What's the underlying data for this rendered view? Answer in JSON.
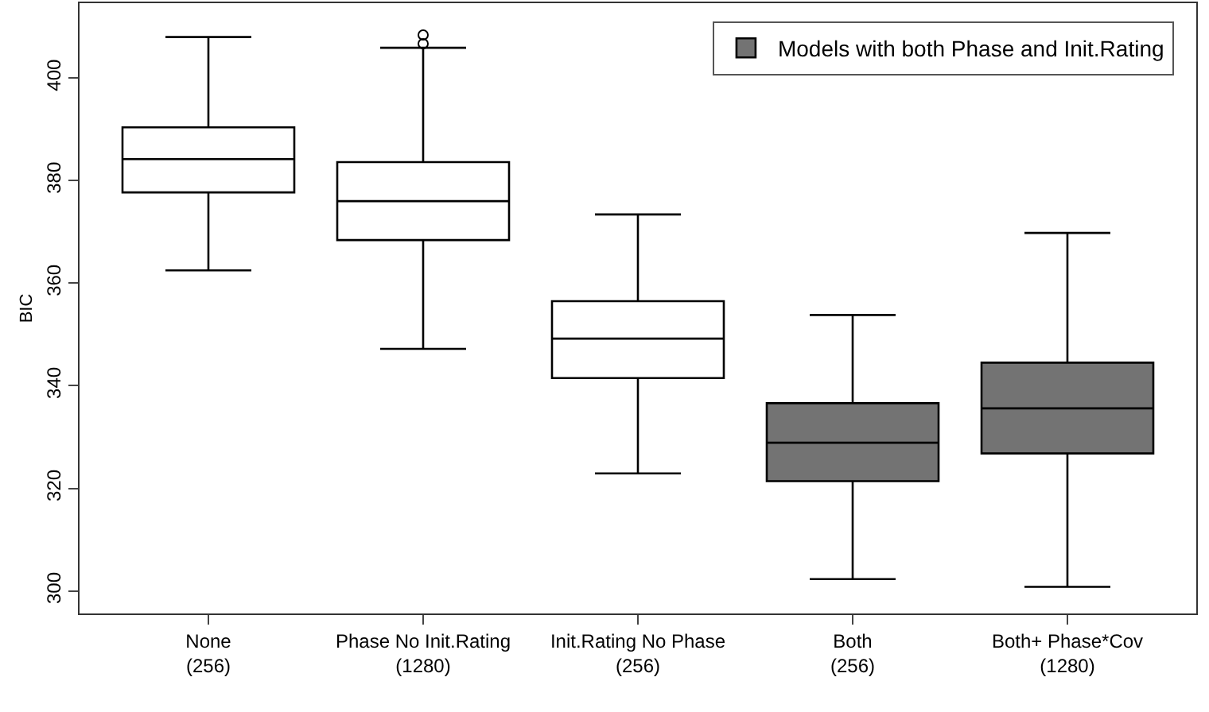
{
  "chart_data": {
    "type": "box",
    "ylabel": "BIC",
    "categories": [
      "None\n(256)",
      "Phase No Init.Rating\n(1280)",
      "Init.Rating No Phase\n(256)",
      "Both\n(256)",
      "Both+ Phase*Cov\n(1280)"
    ],
    "series": [
      {
        "color": "#ffffff",
        "boxes": [
          {
            "low": 362.5,
            "q1": 377.7,
            "median": 384.2,
            "q3": 390.4,
            "high": 408.0
          },
          {
            "low": 347.2,
            "q1": 368.4,
            "median": 376.0,
            "q3": 383.6,
            "high": 405.9,
            "outliers": [
              406.7,
              408.4
            ]
          },
          {
            "low": 322.9,
            "q1": 341.5,
            "median": 349.2,
            "q3": 356.5,
            "high": 373.4
          },
          null,
          null
        ]
      },
      {
        "name": "Models with both Phase and Init.Rating",
        "color": "#737373",
        "boxes": [
          null,
          null,
          null,
          {
            "low": 302.3,
            "q1": 321.4,
            "median": 328.9,
            "q3": 336.6,
            "high": 353.8
          },
          {
            "low": 300.8,
            "q1": 326.8,
            "median": 335.6,
            "q3": 344.5,
            "high": 369.8
          }
        ]
      }
    ],
    "ylim": [
      295.6,
      414.6
    ],
    "yticks": [
      300,
      320,
      340,
      360,
      380,
      400
    ],
    "legend": "top right"
  }
}
